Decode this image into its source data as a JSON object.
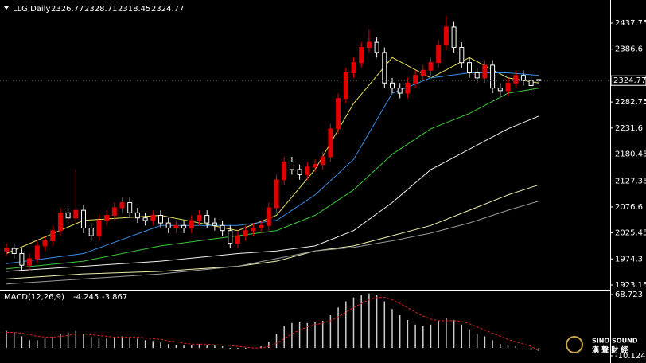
{
  "chart_data": [
    {
      "type": "candlestick",
      "title": "LLG,Daily",
      "bull_color": "#e00000",
      "bear_color": "#ffffff",
      "open": [
        1990,
        1995,
        1985,
        1962,
        1975,
        2000,
        2010,
        2030,
        2065,
        2055,
        2070,
        2035,
        2020,
        2050,
        2060,
        2075,
        2085,
        2065,
        2055,
        2050,
        2060,
        2045,
        2035,
        2040,
        2035,
        2050,
        2060,
        2045,
        2040,
        2030,
        2005,
        2020,
        2030,
        2035,
        2040,
        2075,
        2130,
        2165,
        2150,
        2140,
        2155,
        2160,
        2175,
        2230,
        2290,
        2340,
        2360,
        2390,
        2400,
        2380,
        2320,
        2310,
        2300,
        2320,
        2335,
        2345,
        2360,
        2395,
        2430,
        2390,
        2360,
        2340,
        2330,
        2355,
        2310,
        2305,
        2320,
        2335,
        2325,
        2326.77
      ],
      "high": [
        2005,
        2005,
        1995,
        1985,
        2010,
        2020,
        2040,
        2075,
        2075,
        2150,
        2080,
        2045,
        2060,
        2070,
        2085,
        2095,
        2095,
        2075,
        2065,
        2070,
        2070,
        2055,
        2050,
        2050,
        2060,
        2070,
        2070,
        2055,
        2050,
        2040,
        2030,
        2040,
        2045,
        2050,
        2085,
        2140,
        2175,
        2175,
        2160,
        2165,
        2170,
        2185,
        2240,
        2300,
        2350,
        2370,
        2400,
        2425,
        2410,
        2390,
        2330,
        2320,
        2330,
        2345,
        2355,
        2370,
        2405,
        2452,
        2440,
        2400,
        2370,
        2350,
        2365,
        2365,
        2320,
        2330,
        2345,
        2345,
        2335,
        2328.71
      ],
      "low": [
        1980,
        1975,
        1952,
        1952,
        1965,
        1990,
        2000,
        2020,
        2045,
        2045,
        2025,
        2010,
        2010,
        2040,
        2050,
        2065,
        2055,
        2045,
        2040,
        2040,
        2035,
        2025,
        2025,
        2025,
        2025,
        2040,
        2035,
        2030,
        2020,
        1995,
        1995,
        2010,
        2020,
        2025,
        2030,
        2065,
        2120,
        2140,
        2130,
        2130,
        2145,
        2150,
        2165,
        2220,
        2280,
        2330,
        2350,
        2380,
        2370,
        2310,
        2300,
        2290,
        2290,
        2310,
        2325,
        2335,
        2350,
        2385,
        2380,
        2350,
        2330,
        2320,
        2320,
        2300,
        2295,
        2295,
        2310,
        2315,
        2305,
        2318.45
      ],
      "close": [
        1995,
        1985,
        1962,
        1975,
        2000,
        2010,
        2030,
        2065,
        2055,
        2070,
        2035,
        2020,
        2050,
        2060,
        2075,
        2085,
        2065,
        2055,
        2050,
        2060,
        2045,
        2035,
        2040,
        2035,
        2050,
        2060,
        2045,
        2040,
        2030,
        2005,
        2020,
        2030,
        2035,
        2040,
        2075,
        2130,
        2165,
        2150,
        2140,
        2155,
        2160,
        2175,
        2230,
        2290,
        2340,
        2360,
        2390,
        2400,
        2380,
        2320,
        2310,
        2300,
        2320,
        2335,
        2345,
        2360,
        2395,
        2430,
        2390,
        2360,
        2340,
        2330,
        2355,
        2310,
        2305,
        2320,
        2335,
        2325,
        2315,
        2324.77
      ],
      "lines": [
        {
          "color": "#e8e060",
          "x": [
            0,
            10,
            20,
            30,
            35,
            40,
            45,
            50,
            55,
            60,
            65,
            69
          ],
          "values": [
            1985,
            2050,
            2060,
            2030,
            2060,
            2150,
            2280,
            2370,
            2330,
            2370,
            2330,
            2320
          ]
        },
        {
          "color": "#3a8ee6",
          "x": [
            0,
            10,
            20,
            30,
            35,
            40,
            45,
            50,
            55,
            60,
            65,
            69
          ],
          "values": [
            1965,
            1985,
            2040,
            2040,
            2050,
            2100,
            2170,
            2300,
            2330,
            2340,
            2340,
            2335
          ]
        },
        {
          "color": "#3cc83c",
          "x": [
            0,
            10,
            20,
            30,
            35,
            40,
            45,
            50,
            55,
            60,
            65,
            69
          ],
          "values": [
            1955,
            1970,
            2000,
            2020,
            2030,
            2060,
            2110,
            2180,
            2230,
            2260,
            2300,
            2310
          ]
        },
        {
          "color": "#f0f0f0",
          "x": [
            0,
            10,
            20,
            30,
            35,
            40,
            45,
            50,
            55,
            60,
            65,
            69
          ],
          "values": [
            1950,
            1960,
            1970,
            1985,
            1990,
            2000,
            2030,
            2085,
            2150,
            2190,
            2230,
            2255
          ]
        },
        {
          "color": "#f0eeb0",
          "x": [
            0,
            10,
            20,
            30,
            35,
            40,
            45,
            50,
            55,
            60,
            65,
            69
          ],
          "values": [
            1935,
            1945,
            1950,
            1960,
            1970,
            1990,
            2000,
            2020,
            2040,
            2070,
            2100,
            2120
          ]
        },
        {
          "color": "#9a9a9a",
          "x": [
            0,
            10,
            20,
            30,
            35,
            40,
            45,
            50,
            55,
            60,
            65,
            69
          ],
          "values": [
            1925,
            1935,
            1945,
            1960,
            1975,
            1990,
            1997,
            2010,
            2025,
            2045,
            2070,
            2088
          ]
        }
      ],
      "ylim": [
        1913.8,
        2483.1
      ],
      "yticks": [
        2437.75,
        2386.6,
        2282.75,
        2231.6,
        2180.45,
        2127.35,
        2076.6,
        2025.45,
        1974.3,
        1923.15
      ]
    },
    {
      "type": "macd",
      "title": "MACD(12,26,9)",
      "hist_color": "#d0d0d0",
      "signal_color": "#e02020",
      "values": [
        22,
        20,
        15,
        10,
        10,
        12,
        14,
        18,
        20,
        22,
        18,
        14,
        12,
        12,
        14,
        15,
        14,
        12,
        10,
        9,
        7,
        5,
        4,
        3,
        4,
        5,
        4,
        3,
        2,
        -2,
        -2,
        -1,
        0,
        2,
        8,
        18,
        28,
        32,
        33,
        32,
        33,
        35,
        42,
        52,
        60,
        65,
        68,
        70,
        68,
        60,
        50,
        42,
        36,
        30,
        28,
        30,
        35,
        38,
        36,
        30,
        24,
        18,
        15,
        10,
        5,
        3,
        2,
        0,
        -3,
        -4.245
      ],
      "signal": [
        20,
        20,
        19,
        17,
        15,
        14,
        14,
        15,
        16,
        18,
        18,
        17,
        16,
        15,
        14,
        14,
        14,
        14,
        13,
        12,
        11,
        9,
        8,
        6,
        5,
        5,
        5,
        4,
        4,
        3,
        2,
        1,
        0,
        0,
        2,
        6,
        12,
        18,
        23,
        27,
        30,
        32,
        35,
        40,
        46,
        52,
        57,
        62,
        65,
        65,
        62,
        57,
        52,
        46,
        41,
        37,
        35,
        35,
        35,
        34,
        31,
        27,
        23,
        19,
        15,
        11,
        8,
        5,
        2,
        -3.867
      ],
      "ylim": [
        -16.3,
        72.8
      ],
      "yticks": [
        68.723,
        -10.124
      ]
    }
  ],
  "watermark": {
    "line1": "SINO SOUND",
    "line2": "漢 聲 財 經"
  }
}
